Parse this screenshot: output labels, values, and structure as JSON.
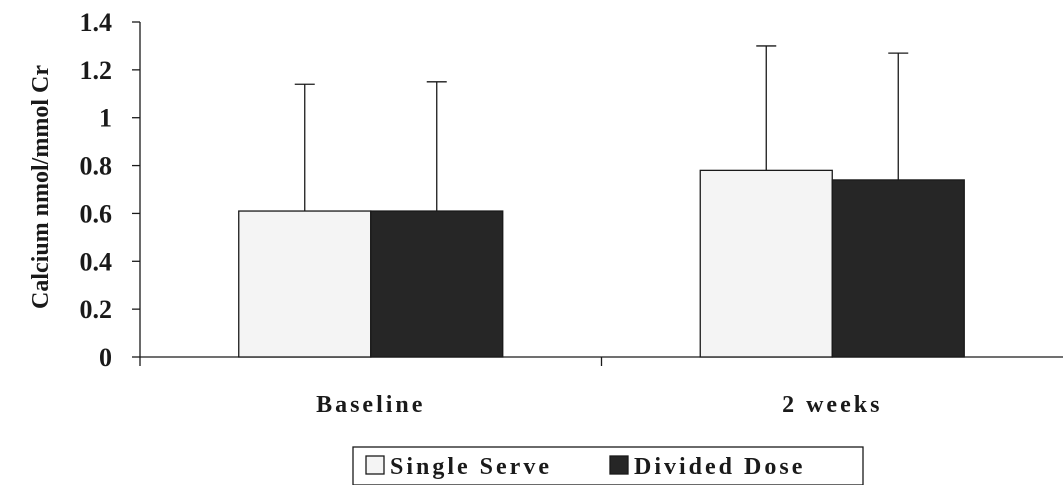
{
  "chart_data": {
    "type": "bar",
    "categories": [
      "Baseline",
      "2 weeks"
    ],
    "series": [
      {
        "name": "Single Serve",
        "values": [
          0.61,
          0.78
        ],
        "error_upper": [
          1.14,
          1.3
        ],
        "color": "#f4f4f4"
      },
      {
        "name": "Divided Dose",
        "values": [
          0.61,
          0.74
        ],
        "error_upper": [
          1.15,
          1.27
        ],
        "color": "#262626"
      }
    ],
    "ylabel": "Calcium nmol/mmol Cr",
    "xlabel": "",
    "ylim": [
      0,
      1.4
    ],
    "yticks": [
      0,
      0.2,
      0.4,
      0.6,
      0.8,
      1,
      1.2,
      1.4
    ],
    "ytick_labels": [
      "0",
      "0.2",
      "0.4",
      "0.6",
      "0.8",
      "1",
      "1.2",
      "1.4"
    ],
    "grid": false,
    "legend_position": "bottom-center",
    "error_bars": "upper only"
  }
}
